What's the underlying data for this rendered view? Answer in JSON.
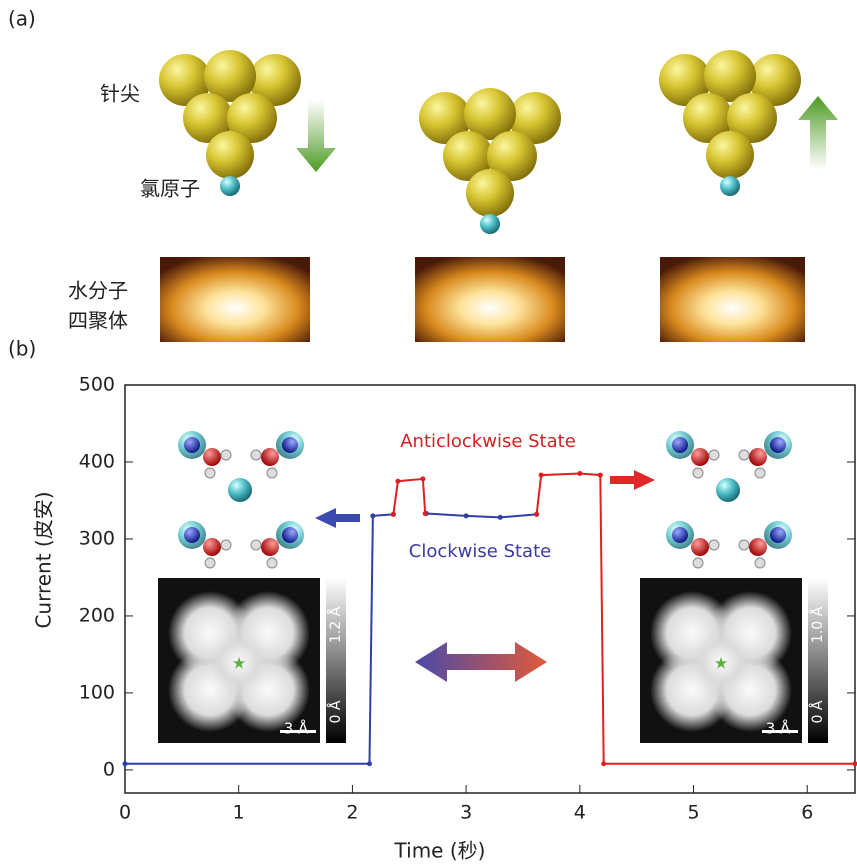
{
  "panel_labels": [
    "(a)",
    "(b)"
  ],
  "illustration_labels": {
    "tip": "针尖",
    "chlorine_atom": "氯原子",
    "water_tetramer": [
      "水分子",
      "四聚体"
    ]
  },
  "insets": {
    "left": {
      "colorbar_max": "1.2 Å",
      "colorbar_min": "0 Å",
      "scale_bar": "3 Å"
    },
    "right": {
      "colorbar_max": "1.0 Å",
      "colorbar_min": "0 Å",
      "scale_bar": "3 Å"
    }
  },
  "chart_data": {
    "type": "line",
    "xlabel": "Time (秒)",
    "ylabel": "Current (皮安)",
    "xlim": [
      0,
      6.42
    ],
    "ylim": [
      -30,
      500
    ],
    "xticks": [
      0,
      1,
      2,
      3,
      4,
      5,
      6
    ],
    "yticks": [
      0,
      100,
      200,
      300,
      400,
      500
    ],
    "annotations": [
      "Anticlockwise State",
      "Clockwise State"
    ],
    "series": [
      {
        "name": "Clockwise State",
        "color": "#2f3fa8",
        "x": [
          0,
          2.15,
          2.18,
          2.36,
          2.5,
          2.65,
          3.0,
          3.3,
          3.62
        ],
        "values": [
          8,
          8,
          330,
          332,
          null,
          333,
          330,
          328,
          332
        ]
      },
      {
        "name": "Anticlockwise State",
        "color": "#e02020",
        "x": [
          2.36,
          2.4,
          2.62,
          2.64,
          3.0,
          3.62,
          3.66,
          4.0,
          4.18,
          4.21,
          6.42
        ],
        "values": [
          332,
          375,
          378,
          333,
          null,
          332,
          383,
          385,
          383,
          8,
          8
        ]
      }
    ]
  }
}
